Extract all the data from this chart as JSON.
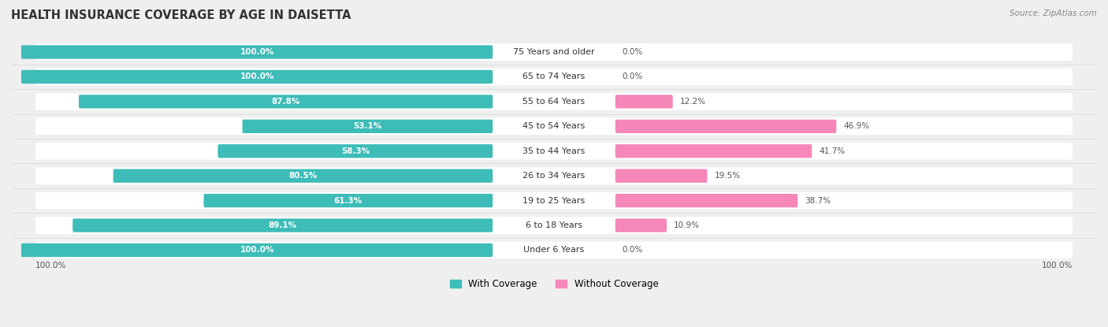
{
  "title": "HEALTH INSURANCE COVERAGE BY AGE IN DAISETTA",
  "source": "Source: ZipAtlas.com",
  "categories": [
    "Under 6 Years",
    "6 to 18 Years",
    "19 to 25 Years",
    "26 to 34 Years",
    "35 to 44 Years",
    "45 to 54 Years",
    "55 to 64 Years",
    "65 to 74 Years",
    "75 Years and older"
  ],
  "with_coverage": [
    100.0,
    89.1,
    61.3,
    80.5,
    58.3,
    53.1,
    87.8,
    100.0,
    100.0
  ],
  "without_coverage": [
    0.0,
    10.9,
    38.7,
    19.5,
    41.7,
    46.9,
    12.2,
    0.0,
    0.0
  ],
  "color_with": "#3dbcb8",
  "color_without": "#f587b9",
  "bg_color": "#efefef",
  "bar_bg": "#ffffff",
  "title_fontsize": 10.5,
  "bar_height": 0.55,
  "legend_labels": [
    "With Coverage",
    "Without Coverage"
  ]
}
